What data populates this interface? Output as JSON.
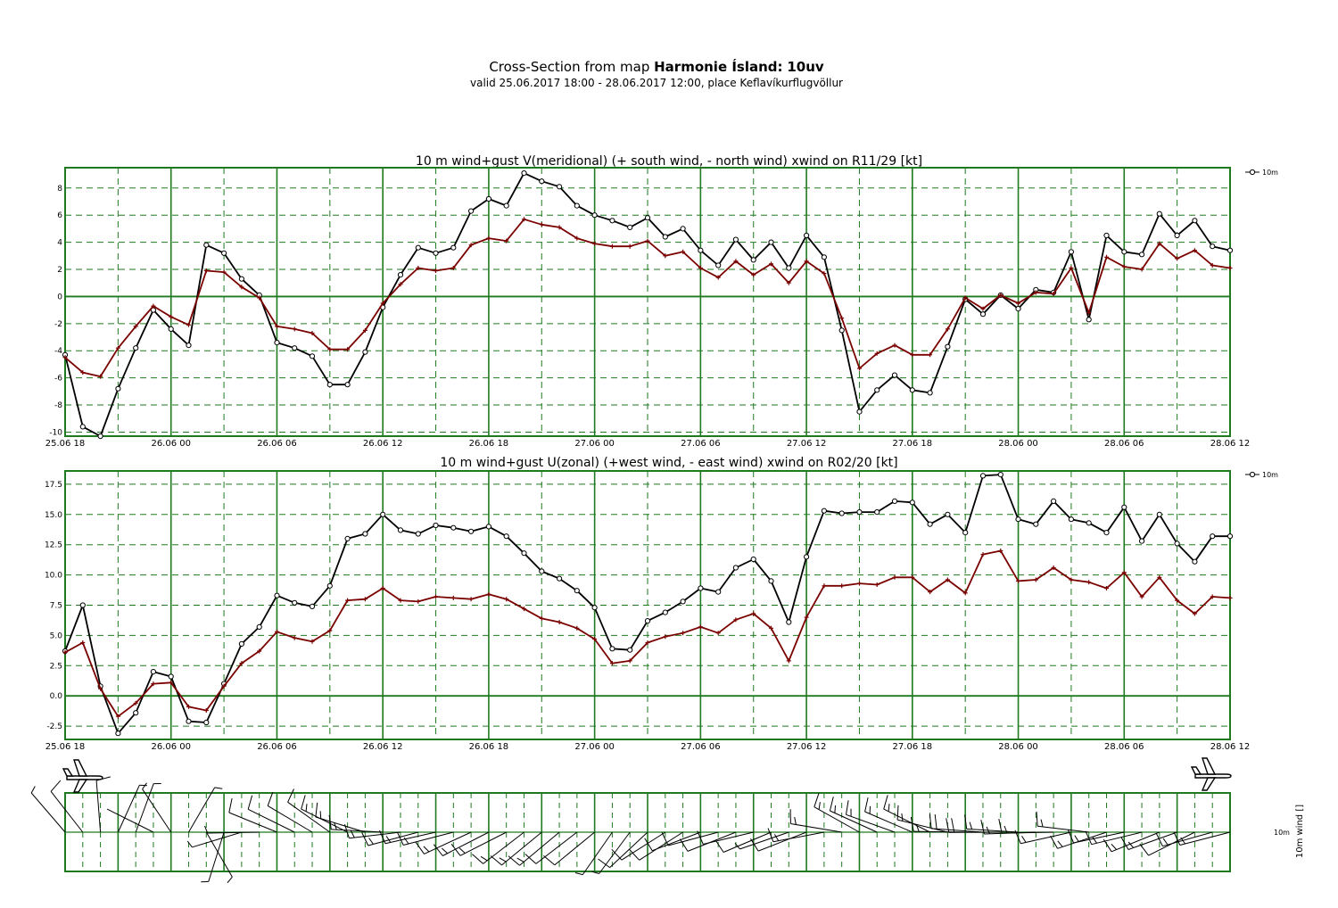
{
  "header": {
    "title_prefix": "Cross-Section from map",
    "title_model": "Harmonie Ísland:",
    "title_param": "10uv",
    "subtitle": "valid 25.06.2017 18:00 - 28.06.2017 12:00, place Keflavíkurflugvöllur"
  },
  "colors": {
    "grid": "#1f7a1f",
    "mean_wind": "#000000",
    "gust": "#7a0000"
  },
  "chart_data": [
    {
      "type": "line",
      "title": "10 m wind+gust V(meridional) (+ south wind, - north wind) xwind on R11/29 [kt]",
      "x_tick_labels": [
        "25.06 18",
        "26.06 00",
        "26.06 06",
        "26.06 12",
        "26.06 18",
        "27.06 00",
        "27.06 06",
        "27.06 12",
        "27.06 18",
        "28.06 00",
        "28.06 06",
        "28.06 12"
      ],
      "x_range_hours": [
        0,
        66
      ],
      "step_hours": 1,
      "ylim": [
        -10.3,
        9.5
      ],
      "y_ticks": [
        -10,
        -8,
        -6,
        -4,
        -2,
        0,
        2,
        4,
        6,
        8
      ],
      "y_tick_labels": [
        "-10",
        "-8",
        "-6",
        "-4",
        "-2",
        "0",
        "2",
        "4",
        "6",
        "8"
      ],
      "grid": true,
      "legend": {
        "label": "10m",
        "placement": "right"
      },
      "series": [
        {
          "values": [
            -4.3,
            -9.6,
            -10.3,
            -6.8,
            -3.8,
            -1.0,
            -2.4,
            -3.6,
            3.8,
            3.2,
            1.3,
            0.1,
            -3.4,
            -3.8,
            -4.4,
            -6.5,
            -6.5,
            -4.1,
            -0.8,
            1.6,
            3.6,
            3.2,
            3.6,
            6.3,
            7.2,
            6.7,
            9.1,
            8.5,
            8.1,
            6.7,
            6.0,
            5.6,
            5.1,
            5.8,
            4.4,
            5.0,
            3.4,
            2.3,
            4.2,
            2.7,
            4.0,
            2.1,
            4.5,
            2.9,
            -2.5,
            -8.5,
            -6.9,
            -5.8,
            -6.9,
            -7.1,
            -3.7,
            -0.2,
            -1.3,
            0.1,
            -0.9,
            0.5,
            0.3,
            3.3,
            -1.7,
            4.5,
            3.3,
            3.1,
            6.1,
            4.5,
            5.6,
            3.7,
            3.4
          ]
        },
        {
          "values": [
            -4.5,
            -5.6,
            -5.9,
            -3.8,
            -2.2,
            -0.7,
            -1.5,
            -2.1,
            1.9,
            1.8,
            0.7,
            -0.1,
            -2.2,
            -2.4,
            -2.7,
            -3.9,
            -3.9,
            -2.5,
            -0.5,
            0.9,
            2.1,
            1.9,
            2.1,
            3.8,
            4.3,
            4.1,
            5.7,
            5.3,
            5.1,
            4.3,
            3.9,
            3.7,
            3.7,
            4.1,
            3.0,
            3.3,
            2.1,
            1.4,
            2.6,
            1.6,
            2.4,
            1.0,
            2.6,
            1.7,
            -1.6,
            -5.3,
            -4.2,
            -3.6,
            -4.3,
            -4.3,
            -2.4,
            -0.1,
            -0.9,
            0.1,
            -0.5,
            0.3,
            0.2,
            2.1,
            -1.2,
            2.9,
            2.2,
            2.0,
            3.9,
            2.8,
            3.4,
            2.3,
            2.1
          ]
        }
      ]
    },
    {
      "type": "line",
      "title": "10 m wind+gust U(zonal) (+west wind, - east wind) xwind on R02/20 [kt]",
      "x_tick_labels": [
        "25.06 18",
        "26.06 00",
        "26.06 06",
        "26.06 12",
        "26.06 18",
        "27.06 00",
        "27.06 06",
        "27.06 12",
        "27.06 18",
        "28.06 00",
        "28.06 06",
        "28.06 12"
      ],
      "x_range_hours": [
        0,
        66
      ],
      "step_hours": 1,
      "ylim": [
        -3.6,
        18.6
      ],
      "y_ticks": [
        -2.5,
        0.0,
        2.5,
        5.0,
        7.5,
        10.0,
        12.5,
        15.0,
        17.5
      ],
      "y_tick_labels": [
        "-2.5",
        "0.0",
        "2.5",
        "5.0",
        "7.5",
        "10.0",
        "12.5",
        "15.0",
        "17.5"
      ],
      "grid": true,
      "legend": {
        "label": "10m",
        "placement": "right"
      },
      "series": [
        {
          "values": [
            3.7,
            7.5,
            0.8,
            -3.1,
            -1.4,
            2.0,
            1.6,
            -2.1,
            -2.2,
            1.0,
            4.3,
            5.7,
            8.3,
            7.7,
            7.4,
            9.1,
            13.0,
            13.4,
            15.0,
            13.7,
            13.4,
            14.1,
            13.9,
            13.6,
            14.0,
            13.2,
            11.8,
            10.3,
            9.7,
            8.7,
            7.3,
            3.9,
            3.8,
            6.2,
            6.9,
            7.8,
            8.9,
            8.6,
            10.6,
            11.3,
            9.5,
            6.1,
            11.5,
            15.3,
            15.1,
            15.2,
            15.2,
            16.1,
            16.0,
            14.2,
            15.0,
            13.5,
            18.2,
            18.3,
            14.6,
            14.2,
            16.1,
            14.6,
            14.3,
            13.5,
            15.6,
            12.8,
            15.0,
            12.6,
            11.1,
            13.2,
            13.2
          ]
        },
        {
          "values": [
            3.6,
            4.4,
            0.6,
            -1.7,
            -0.6,
            1.0,
            1.1,
            -0.9,
            -1.2,
            0.8,
            2.7,
            3.7,
            5.3,
            4.8,
            4.5,
            5.4,
            7.9,
            8.0,
            8.9,
            7.9,
            7.8,
            8.2,
            8.1,
            8.0,
            8.4,
            8.0,
            7.2,
            6.4,
            6.1,
            5.6,
            4.7,
            2.7,
            2.9,
            4.4,
            4.9,
            5.2,
            5.7,
            5.2,
            6.3,
            6.8,
            5.6,
            2.9,
            6.5,
            9.1,
            9.1,
            9.3,
            9.2,
            9.8,
            9.8,
            8.6,
            9.6,
            8.5,
            11.7,
            12.0,
            9.5,
            9.6,
            10.6,
            9.6,
            9.4,
            8.9,
            10.2,
            8.2,
            9.8,
            7.9,
            6.8,
            8.2,
            8.1
          ]
        }
      ]
    }
  ],
  "wind_panel": {
    "right_label": "10m wind []",
    "level_label": "10m"
  }
}
